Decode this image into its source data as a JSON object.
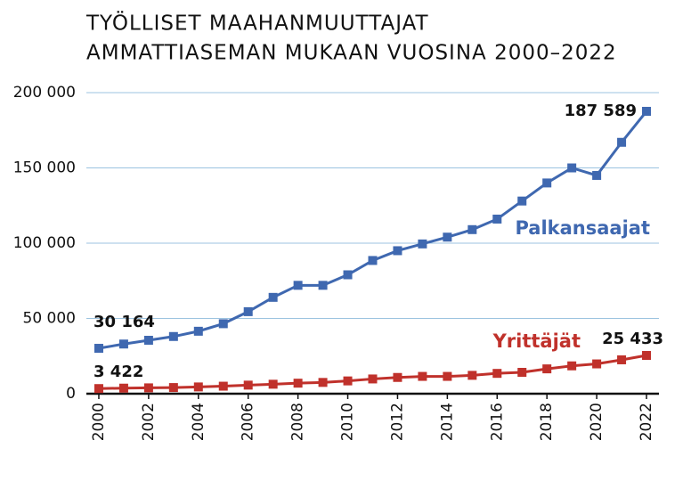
{
  "chart_data": {
    "type": "line",
    "title": [
      "TYÖLLISET MAAHANMUUTTAJAT",
      "AMMATTIASEMAN MUKAAN VUOSINA 2000–2022"
    ],
    "x": [
      2000,
      2001,
      2002,
      2003,
      2004,
      2005,
      2006,
      2007,
      2008,
      2009,
      2010,
      2011,
      2012,
      2013,
      2014,
      2015,
      2016,
      2017,
      2018,
      2019,
      2020,
      2021,
      2022
    ],
    "series": [
      {
        "name": "Palkansaajat",
        "color": "#3f68b0",
        "values": [
          30164,
          33000,
          35500,
          38000,
          41500,
          46500,
          54500,
          64000,
          72000,
          72000,
          79000,
          88500,
          95000,
          99500,
          104000,
          109000,
          116000,
          128000,
          140000,
          150000,
          145000,
          167000,
          187589
        ],
        "value_labels": [
          "30 164",
          null,
          null,
          null,
          null,
          null,
          null,
          null,
          null,
          null,
          null,
          null,
          null,
          null,
          null,
          null,
          null,
          null,
          null,
          null,
          null,
          null,
          "187 589"
        ]
      },
      {
        "name": "Yrittäjät",
        "color": "#c0312b",
        "values": [
          3422,
          3700,
          3900,
          4100,
          4500,
          5000,
          5700,
          6300,
          7000,
          7500,
          8500,
          9800,
          10800,
          11500,
          11500,
          12200,
          13500,
          14200,
          16500,
          18500,
          19800,
          22500,
          25433
        ],
        "value_labels": [
          "3 422",
          null,
          null,
          null,
          null,
          null,
          null,
          null,
          null,
          null,
          null,
          null,
          null,
          null,
          null,
          null,
          null,
          null,
          null,
          null,
          null,
          null,
          "25 433"
        ]
      }
    ],
    "xlim": [
      1999.5,
      2022.5
    ],
    "xticks": [
      2000,
      2002,
      2004,
      2006,
      2008,
      2010,
      2012,
      2014,
      2016,
      2018,
      2020,
      2022
    ],
    "ylim": [
      0,
      200000
    ],
    "yticks": [
      0,
      {
        "value": 50000,
        "label": "50 000"
      },
      {
        "value": 100000,
        "label": "100 000"
      },
      {
        "value": 150000,
        "label": "150 000"
      },
      {
        "value": 200000,
        "label": "200 000"
      }
    ],
    "grid": true
  }
}
